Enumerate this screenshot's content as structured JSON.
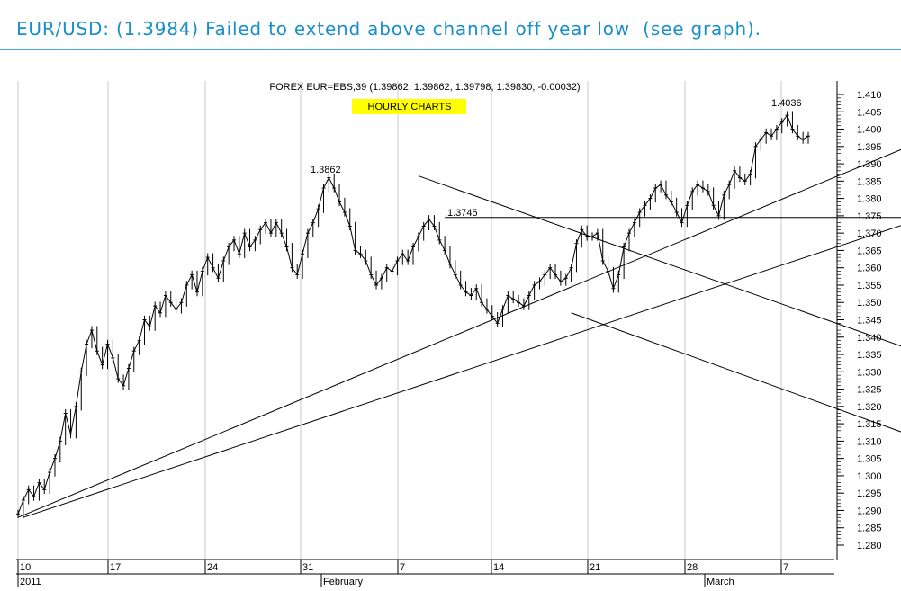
{
  "headline": "EUR/USD: (1.3984) Failed to extend above channel off year low  (see graph).",
  "chart_data": {
    "type": "line",
    "title": "FOREX EUR=EBS,39 (1.39862, 1.39862, 1.39798, 1.39830, -0.00032)",
    "badge": "HOURLY  CHARTS",
    "badge_color": "#ffff00",
    "y_ticks": [
      "1.410",
      "1.405",
      "1.400",
      "1.395",
      "1.390",
      "1.385",
      "1.380",
      "1.375",
      "1.370",
      "1.365",
      "1.360",
      "1.355",
      "1.350",
      "1.345",
      "1.340",
      "1.335",
      "1.330",
      "1.325",
      "1.320",
      "1.315",
      "1.310",
      "1.305",
      "1.300",
      "1.295",
      "1.290",
      "1.285",
      "1.280"
    ],
    "ylim": [
      1.276,
      1.411
    ],
    "x_day_labels": [
      "10",
      "17",
      "24",
      "31",
      "7",
      "14",
      "21",
      "28",
      "7"
    ],
    "x_month_labels": [
      "2011",
      "February",
      "March"
    ],
    "annotations": [
      "1.3862",
      "1.3745",
      "1.4036"
    ],
    "series": [
      {
        "values": [
          1.289,
          1.293,
          1.296,
          1.294,
          1.298,
          1.296,
          1.301,
          1.305,
          1.31,
          1.318,
          1.312,
          1.32,
          1.33,
          1.338,
          1.342,
          1.336,
          1.332,
          1.338,
          1.334,
          1.328,
          1.326,
          1.331,
          1.336,
          1.339,
          1.345,
          1.343,
          1.349,
          1.347,
          1.352,
          1.35,
          1.348,
          1.35,
          1.355,
          1.358,
          1.353,
          1.359,
          1.363,
          1.36,
          1.357,
          1.362,
          1.366,
          1.368,
          1.364,
          1.37,
          1.366,
          1.368,
          1.371,
          1.373,
          1.37,
          1.373,
          1.37,
          1.366,
          1.36,
          1.358,
          1.364,
          1.37,
          1.373,
          1.377,
          1.383,
          1.386,
          1.383,
          1.379,
          1.376,
          1.372,
          1.365,
          1.364,
          1.362,
          1.358,
          1.355,
          1.357,
          1.36,
          1.359,
          1.362,
          1.364,
          1.362,
          1.366,
          1.369,
          1.372,
          1.374,
          1.372,
          1.368,
          1.365,
          1.361,
          1.358,
          1.355,
          1.353,
          1.352,
          1.354,
          1.35,
          1.348,
          1.346,
          1.344,
          1.348,
          1.352,
          1.351,
          1.35,
          1.349,
          1.352,
          1.355,
          1.356,
          1.358,
          1.36,
          1.358,
          1.356,
          1.357,
          1.36,
          1.367,
          1.371,
          1.369,
          1.369,
          1.37,
          1.362,
          1.359,
          1.354,
          1.358,
          1.366,
          1.37,
          1.373,
          1.376,
          1.378,
          1.38,
          1.383,
          1.384,
          1.381,
          1.379,
          1.376,
          1.373,
          1.378,
          1.382,
          1.384,
          1.383,
          1.382,
          1.378,
          1.375,
          1.381,
          1.384,
          1.388,
          1.386,
          1.385,
          1.387,
          1.395,
          1.397,
          1.399,
          1.398,
          1.4,
          1.402,
          1.404,
          1.4,
          1.398,
          1.397,
          1.398
        ]
      }
    ],
    "trendlines": [
      {
        "points": [
          [
            0,
            1.288
          ],
          [
            188,
            1.407
          ]
        ]
      },
      {
        "points": [
          [
            1,
            1.288
          ],
          [
            188,
            1.3825
          ]
        ]
      },
      {
        "points": [
          [
            76,
            1.3865
          ],
          [
            188,
            1.3265
          ]
        ]
      },
      {
        "points": [
          [
            105,
            1.347
          ],
          [
            188,
            1.3015
          ]
        ]
      },
      {
        "points": [
          [
            81,
            1.3745
          ],
          [
            188,
            1.3745
          ]
        ]
      }
    ],
    "grid": "vertical",
    "scale_position": "right"
  }
}
